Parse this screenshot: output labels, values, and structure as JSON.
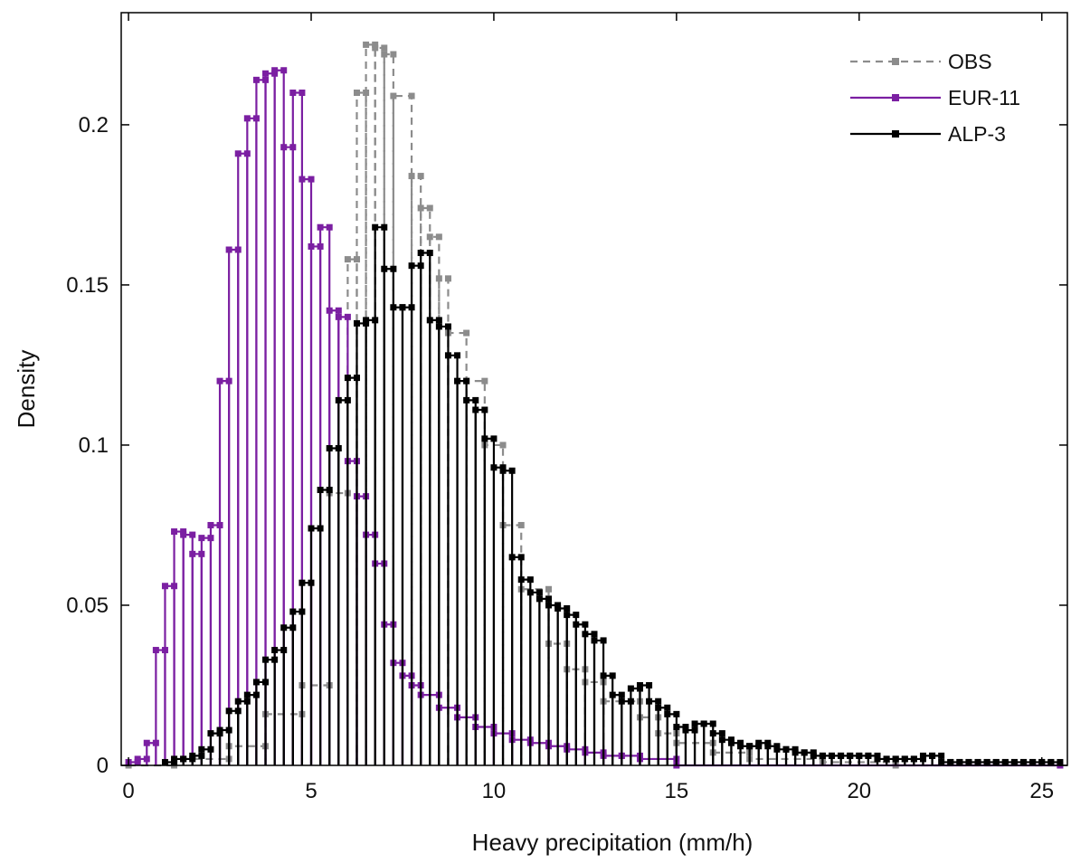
{
  "chart_data": {
    "type": "bar",
    "xlabel": "Heavy precipitation (mm/h)",
    "ylabel": "Density",
    "xlim": [
      -0.2,
      25.7
    ],
    "ylim": [
      0,
      0.235
    ],
    "x_ticks": [
      0,
      5,
      10,
      15,
      20,
      25
    ],
    "x_tick_labels": [
      "0",
      "5",
      "10",
      "15",
      "20",
      "25"
    ],
    "y_ticks": [
      0,
      0.05,
      0.1,
      0.15,
      0.2
    ],
    "y_tick_labels": [
      "0",
      "0.05",
      "0.1",
      "0.15",
      "0.2"
    ],
    "grid": false,
    "legend_position": "top-right",
    "series": [
      {
        "name": "OBS",
        "color": "#8c8c8c",
        "line_style": "dashed",
        "bins": [
          [
            0,
            1.25
          ],
          [
            1.25,
            2.75
          ],
          [
            2.75,
            3.75
          ],
          [
            3.75,
            4.75
          ],
          [
            4.75,
            5.5
          ],
          [
            5.5,
            6
          ],
          [
            6,
            6.25
          ],
          [
            6.25,
            6.5
          ],
          [
            6.5,
            6.75
          ],
          [
            6.75,
            7
          ],
          [
            7,
            7.25
          ],
          [
            7.25,
            7.75
          ],
          [
            7.75,
            8
          ],
          [
            8,
            8.25
          ],
          [
            8.25,
            8.5
          ],
          [
            8.5,
            8.75
          ],
          [
            8.75,
            9.25
          ],
          [
            9.25,
            9.75
          ],
          [
            9.75,
            10.25
          ],
          [
            10.25,
            10.75
          ],
          [
            10.75,
            11.5
          ],
          [
            11.5,
            12
          ],
          [
            12,
            12.5
          ],
          [
            12.5,
            13
          ],
          [
            13,
            14
          ],
          [
            14,
            14.5
          ],
          [
            14.5,
            15
          ],
          [
            15,
            16
          ],
          [
            16,
            17
          ],
          [
            17,
            19
          ],
          [
            19,
            21
          ],
          [
            21,
            25.5
          ]
        ],
        "values": [
          0.0,
          0.002,
          0.006,
          0.016,
          0.025,
          0.085,
          0.158,
          0.21,
          0.225,
          0.224,
          0.222,
          0.209,
          0.184,
          0.174,
          0.165,
          0.152,
          0.135,
          0.12,
          0.1,
          0.075,
          0.055,
          0.038,
          0.03,
          0.026,
          0.02,
          0.015,
          0.01,
          0.007,
          0.004,
          0.002,
          0.001,
          0.0
        ]
      },
      {
        "name": "EUR-11",
        "color": "#7b1fa2",
        "line_style": "solid",
        "bins": [
          [
            0,
            0.25
          ],
          [
            0.25,
            0.5
          ],
          [
            0.5,
            0.75
          ],
          [
            0.75,
            1
          ],
          [
            1,
            1.25
          ],
          [
            1.25,
            1.5
          ],
          [
            1.5,
            1.75
          ],
          [
            1.75,
            2
          ],
          [
            2,
            2.25
          ],
          [
            2.25,
            2.5
          ],
          [
            2.5,
            2.75
          ],
          [
            2.75,
            3
          ],
          [
            3,
            3.25
          ],
          [
            3.25,
            3.5
          ],
          [
            3.5,
            3.75
          ],
          [
            3.75,
            4
          ],
          [
            4,
            4.25
          ],
          [
            4.25,
            4.5
          ],
          [
            4.5,
            4.75
          ],
          [
            4.75,
            5
          ],
          [
            5,
            5.25
          ],
          [
            5.25,
            5.5
          ],
          [
            5.5,
            5.75
          ],
          [
            5.75,
            6
          ],
          [
            6,
            6.25
          ],
          [
            6.25,
            6.5
          ],
          [
            6.5,
            6.75
          ],
          [
            6.75,
            7
          ],
          [
            7,
            7.25
          ],
          [
            7.25,
            7.5
          ],
          [
            7.5,
            7.75
          ],
          [
            7.75,
            8
          ],
          [
            8,
            8.5
          ],
          [
            8.5,
            9
          ],
          [
            9,
            9.5
          ],
          [
            9.5,
            10
          ],
          [
            10,
            10.5
          ],
          [
            10.5,
            11
          ],
          [
            11,
            11.5
          ],
          [
            11.5,
            12
          ],
          [
            12,
            12.5
          ],
          [
            12.5,
            13
          ],
          [
            13,
            13.5
          ],
          [
            13.5,
            14
          ],
          [
            14,
            15
          ],
          [
            15,
            25.5
          ]
        ],
        "values": [
          0.001,
          0.002,
          0.007,
          0.036,
          0.056,
          0.073,
          0.072,
          0.066,
          0.071,
          0.075,
          0.12,
          0.161,
          0.191,
          0.202,
          0.214,
          0.216,
          0.217,
          0.193,
          0.21,
          0.183,
          0.162,
          0.168,
          0.142,
          0.14,
          0.095,
          0.084,
          0.072,
          0.063,
          0.044,
          0.032,
          0.028,
          0.025,
          0.022,
          0.018,
          0.015,
          0.012,
          0.01,
          0.008,
          0.007,
          0.006,
          0.005,
          0.004,
          0.003,
          0.003,
          0.002,
          0.0
        ]
      },
      {
        "name": "ALP-3",
        "color": "#000000",
        "line_style": "solid",
        "bins": [
          [
            1,
            1.25
          ],
          [
            1.25,
            1.5
          ],
          [
            1.5,
            1.75
          ],
          [
            1.75,
            2
          ],
          [
            2,
            2.25
          ],
          [
            2.25,
            2.5
          ],
          [
            2.5,
            2.75
          ],
          [
            2.75,
            3
          ],
          [
            3,
            3.25
          ],
          [
            3.25,
            3.5
          ],
          [
            3.5,
            3.75
          ],
          [
            3.75,
            4
          ],
          [
            4,
            4.25
          ],
          [
            4.25,
            4.5
          ],
          [
            4.5,
            4.75
          ],
          [
            4.75,
            5
          ],
          [
            5,
            5.25
          ],
          [
            5.25,
            5.5
          ],
          [
            5.5,
            5.75
          ],
          [
            5.75,
            6
          ],
          [
            6,
            6.25
          ],
          [
            6.25,
            6.5
          ],
          [
            6.5,
            6.75
          ],
          [
            6.75,
            7
          ],
          [
            7,
            7.25
          ],
          [
            7.25,
            7.5
          ],
          [
            7.5,
            7.75
          ],
          [
            7.75,
            8
          ],
          [
            8,
            8.25
          ],
          [
            8.25,
            8.5
          ],
          [
            8.5,
            8.75
          ],
          [
            8.75,
            9
          ],
          [
            9,
            9.25
          ],
          [
            9.25,
            9.5
          ],
          [
            9.5,
            9.75
          ],
          [
            9.75,
            10
          ],
          [
            10,
            10.25
          ],
          [
            10.25,
            10.5
          ],
          [
            10.5,
            10.75
          ],
          [
            10.75,
            11
          ],
          [
            11,
            11.25
          ],
          [
            11.25,
            11.5
          ],
          [
            11.5,
            11.75
          ],
          [
            11.75,
            12
          ],
          [
            12,
            12.25
          ],
          [
            12.25,
            12.5
          ],
          [
            12.5,
            12.75
          ],
          [
            12.75,
            13
          ],
          [
            13,
            13.25
          ],
          [
            13.25,
            13.5
          ],
          [
            13.5,
            13.75
          ],
          [
            13.75,
            14
          ],
          [
            14,
            14.25
          ],
          [
            14.25,
            14.5
          ],
          [
            14.5,
            14.75
          ],
          [
            14.75,
            15
          ],
          [
            15,
            15.25
          ],
          [
            15.25,
            15.5
          ],
          [
            15.5,
            15.75
          ],
          [
            15.75,
            16
          ],
          [
            16,
            16.25
          ],
          [
            16.25,
            16.5
          ],
          [
            16.5,
            16.75
          ],
          [
            16.75,
            17
          ],
          [
            17,
            17.25
          ],
          [
            17.25,
            17.5
          ],
          [
            17.5,
            17.75
          ],
          [
            17.75,
            18
          ],
          [
            18,
            18.25
          ],
          [
            18.25,
            18.5
          ],
          [
            18.5,
            18.75
          ],
          [
            18.75,
            19
          ],
          [
            19,
            19.25
          ],
          [
            19.25,
            19.5
          ],
          [
            19.5,
            19.75
          ],
          [
            19.75,
            20
          ],
          [
            20,
            20.25
          ],
          [
            20.25,
            20.5
          ],
          [
            20.5,
            20.75
          ],
          [
            20.75,
            21
          ],
          [
            21,
            21.25
          ],
          [
            21.25,
            21.5
          ],
          [
            21.5,
            21.75
          ],
          [
            21.75,
            22
          ],
          [
            22,
            22.25
          ],
          [
            22.25,
            22.5
          ],
          [
            22.5,
            22.75
          ],
          [
            22.75,
            23
          ],
          [
            23,
            23.25
          ],
          [
            23.25,
            23.5
          ],
          [
            23.5,
            23.75
          ],
          [
            23.75,
            24
          ],
          [
            24,
            24.25
          ],
          [
            24.25,
            24.5
          ],
          [
            24.5,
            24.75
          ],
          [
            24.75,
            25
          ],
          [
            25,
            25.25
          ],
          [
            25.25,
            25.5
          ]
        ],
        "values": [
          0.001,
          0.002,
          0.002,
          0.003,
          0.005,
          0.01,
          0.011,
          0.017,
          0.02,
          0.022,
          0.026,
          0.033,
          0.036,
          0.043,
          0.048,
          0.057,
          0.074,
          0.086,
          0.099,
          0.114,
          0.121,
          0.138,
          0.139,
          0.168,
          0.155,
          0.143,
          0.143,
          0.156,
          0.16,
          0.139,
          0.137,
          0.128,
          0.12,
          0.114,
          0.111,
          0.102,
          0.093,
          0.092,
          0.065,
          0.058,
          0.054,
          0.052,
          0.05,
          0.049,
          0.047,
          0.044,
          0.041,
          0.039,
          0.028,
          0.022,
          0.02,
          0.024,
          0.025,
          0.02,
          0.018,
          0.016,
          0.012,
          0.011,
          0.013,
          0.013,
          0.01,
          0.008,
          0.007,
          0.006,
          0.006,
          0.007,
          0.006,
          0.005,
          0.005,
          0.004,
          0.004,
          0.003,
          0.003,
          0.003,
          0.003,
          0.003,
          0.003,
          0.003,
          0.002,
          0.002,
          0.002,
          0.002,
          0.002,
          0.003,
          0.003,
          0.001,
          0.001,
          0.001,
          0.001,
          0.001,
          0.001,
          0.001,
          0.001,
          0.001,
          0.001,
          0.001,
          0.001,
          0.001
        ]
      }
    ]
  }
}
